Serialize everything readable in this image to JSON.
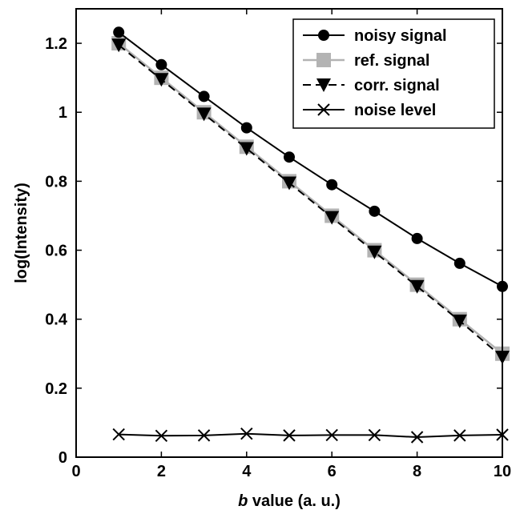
{
  "chart_data": {
    "type": "line",
    "xlabel_italic": "b",
    "xlabel_rest": " value (a. u.)",
    "ylabel": "log(Intensity)",
    "xlim": [
      0,
      10
    ],
    "ylim": [
      0,
      1.3
    ],
    "xticks": [
      0,
      2,
      4,
      6,
      8,
      10
    ],
    "xtick_labels": [
      "0",
      "2",
      "4",
      "6",
      "8",
      "10"
    ],
    "yticks": [
      0,
      0.2,
      0.4,
      0.6,
      0.8,
      1.0,
      1.2
    ],
    "ytick_labels": [
      "0",
      "0.2",
      "0.4",
      "0.6",
      "0.8",
      "1",
      "1.2"
    ],
    "grid": false,
    "legend_position": "top-right",
    "x": [
      1,
      2,
      3,
      4,
      5,
      6,
      7,
      8,
      9,
      10
    ],
    "series": [
      {
        "name": "noisy signal",
        "marker": "circle",
        "color": "#000000",
        "dashed": false,
        "values": [
          1.232,
          1.138,
          1.046,
          0.955,
          0.87,
          0.79,
          0.713,
          0.634,
          0.562,
          0.495
        ]
      },
      {
        "name": "ref. signal",
        "marker": "square",
        "color": "#b3b3b3",
        "dashed": false,
        "values": [
          1.2,
          1.1,
          1.0,
          0.9,
          0.8,
          0.7,
          0.6,
          0.5,
          0.4,
          0.3
        ]
      },
      {
        "name": "corr. signal",
        "marker": "triangle-down",
        "color": "#000000",
        "dashed": true,
        "values": [
          1.195,
          1.095,
          0.995,
          0.895,
          0.795,
          0.695,
          0.595,
          0.495,
          0.395,
          0.29
        ]
      },
      {
        "name": "noise level",
        "marker": "x",
        "color": "#000000",
        "dashed": false,
        "values": [
          0.066,
          0.062,
          0.063,
          0.068,
          0.063,
          0.064,
          0.064,
          0.058,
          0.063,
          0.065
        ]
      }
    ]
  }
}
